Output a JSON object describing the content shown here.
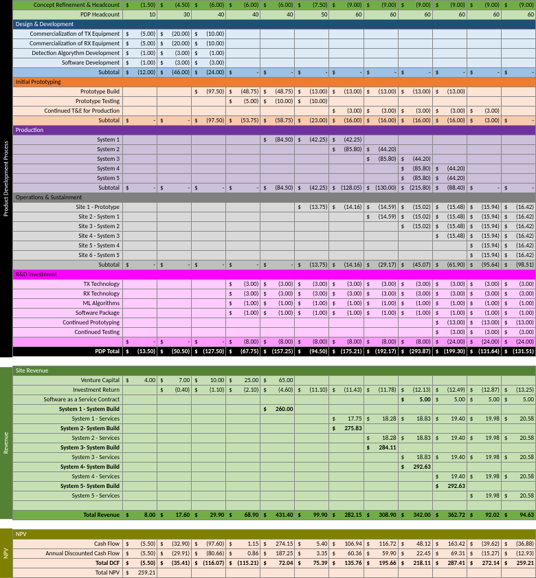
{
  "colors": {
    "green": "#70ad47",
    "green_light": "#c6e0b4",
    "green_dark": "#548235",
    "blue": "#1f4e78",
    "blue_mid": "#9bc2e6",
    "blue_light": "#ddebf7",
    "orange": "#ed7d31",
    "orange_light": "#fce4d6",
    "orange_mid": "#f8cbad",
    "purple": "#7030a0",
    "purple_light": "#ccc0da",
    "grey": "#808080",
    "grey_light": "#d9d9d9",
    "grey_mid": "#bfbfbf",
    "magenta": "#ff00ff",
    "pink_light": "#ffccff",
    "pink_mid": "#ff99ff",
    "black": "#000000",
    "white": "#ffffff",
    "olive": "#808000"
  },
  "side": {
    "pdp": "Product Development Process",
    "rev": "Revenue",
    "npv": "NPV"
  },
  "periods": 12,
  "rows": [
    {
      "label": "Concept Refinement & Headcount",
      "bg": "green",
      "v": [
        "(1.50)",
        "(4.50)",
        "(6.00)",
        "(6.00)",
        "(6.00)",
        "(7.50)",
        "(9.00)",
        "(9.00)",
        "(9.00)",
        "(9.00)",
        "(9.00)",
        "(9.00)"
      ],
      "d": 1
    },
    {
      "label": "PDP Headcount",
      "bg": "green_light",
      "v": [
        "10",
        "30",
        "40",
        "40",
        "40",
        "50",
        "60",
        "60",
        "60",
        "60",
        "60",
        "60"
      ]
    },
    {
      "label": "Design & Development",
      "bg": "blue",
      "section": 1,
      "fg": "white"
    },
    {
      "label": "Commercialization of TX Equipment",
      "bg": "blue_light",
      "v": [
        "(5.00)",
        "(20.00)",
        "(10.00)",
        "",
        "",
        "",
        "",
        "",
        "",
        "",
        "",
        ""
      ],
      "d": 1
    },
    {
      "label": "Commercialization of RX Equipment",
      "bg": "blue_light",
      "v": [
        "(5.00)",
        "(20.00)",
        "(10.00)",
        "",
        "",
        "",
        "",
        "",
        "",
        "",
        "",
        ""
      ],
      "d": 1
    },
    {
      "label": "Detection Algorythm Development",
      "bg": "blue_light",
      "v": [
        "(1.00)",
        "(3.00)",
        "(1.00)",
        "",
        "",
        "",
        "",
        "",
        "",
        "",
        "",
        ""
      ],
      "d": 1
    },
    {
      "label": "Software Development",
      "bg": "blue_light",
      "v": [
        "(1.00)",
        "(3.00)",
        "(3.00)",
        "",
        "",
        "",
        "",
        "",
        "",
        "",
        "",
        ""
      ],
      "d": 1
    },
    {
      "label": "Subtotal",
      "bg": "blue_mid",
      "v": [
        "(12.00)",
        "(46.00)",
        "(24.00)",
        "-",
        "-",
        "-",
        "-",
        "-",
        "-",
        "-",
        "-",
        "-"
      ],
      "d": 1
    },
    {
      "label": "Initial Prototyping",
      "bg": "orange",
      "section": 1
    },
    {
      "label": "Prototype Build",
      "bg": "orange_light",
      "v": [
        "",
        "",
        "(97.50)",
        "(48.75)",
        "(48.75)",
        "(13.00)",
        "(13.00)",
        "(13.00)",
        "(13.00)",
        "(13.00)",
        "",
        ""
      ],
      "d": 1
    },
    {
      "label": "Prototype Testing",
      "bg": "orange_light",
      "v": [
        "",
        "",
        "",
        "(5.00)",
        "(10.00)",
        "(10.00)",
        "",
        "",
        "",
        "",
        "",
        ""
      ],
      "d": 1
    },
    {
      "label": "Continued T&E for Production",
      "bg": "orange_light",
      "v": [
        "",
        "",
        "",
        "",
        "",
        "",
        "(3.00)",
        "(3.00)",
        "(3.00)",
        "(3.00)",
        "(3.00)",
        ""
      ],
      "d": 1
    },
    {
      "label": "Subtotal",
      "bg": "orange_mid",
      "v": [
        "-",
        "-",
        "(97.50)",
        "(53.75)",
        "(58.75)",
        "(23.00)",
        "(16.00)",
        "(16.00)",
        "(16.00)",
        "(16.00)",
        "(3.00)",
        "-"
      ],
      "d": 1
    },
    {
      "label": "Production",
      "bg": "purple",
      "section": 1,
      "fg": "white"
    },
    {
      "label": "System 1",
      "bg": "purple_light",
      "v": [
        "",
        "",
        "",
        "",
        "(84.50)",
        "(42.25)",
        "(42.25)",
        "",
        "",
        "",
        "",
        ""
      ],
      "d": 1
    },
    {
      "label": "System 2",
      "bg": "purple_light",
      "v": [
        "",
        "",
        "",
        "",
        "",
        "",
        "(85.80)",
        "(44.20)",
        "",
        "",
        "",
        ""
      ],
      "d": 1
    },
    {
      "label": "System 3",
      "bg": "purple_light",
      "v": [
        "",
        "",
        "",
        "",
        "",
        "",
        "",
        "(85.80)",
        "(44.20)",
        "",
        "",
        ""
      ],
      "d": 1
    },
    {
      "label": "System 4",
      "bg": "purple_light",
      "v": [
        "",
        "",
        "",
        "",
        "",
        "",
        "",
        "",
        "(85.80)",
        "(44.20)",
        "",
        ""
      ],
      "d": 1
    },
    {
      "label": "System 5",
      "bg": "purple_light",
      "v": [
        "",
        "",
        "",
        "",
        "",
        "",
        "",
        "",
        "(85.80)",
        "(44.20)",
        "",
        ""
      ],
      "d": 1
    },
    {
      "label": "Subtotal",
      "bg": "purple_light",
      "v": [
        "-",
        "-",
        "-",
        "-",
        "(84.50)",
        "(42.25)",
        "(128.05)",
        "(130.00)",
        "(215.80)",
        "(88.40)",
        "-",
        "-"
      ],
      "d": 1
    },
    {
      "label": "Operations & Sustainment",
      "bg": "grey",
      "section": 1
    },
    {
      "label": "Site 1 - Prototype",
      "bg": "grey_light",
      "v": [
        "",
        "",
        "",
        "",
        "",
        "(13.75)",
        "(14.16)",
        "(14.59)",
        "(15.02)",
        "(15.48)",
        "(15.94)",
        "(16.42)"
      ],
      "d": 1
    },
    {
      "label": "Site 2 - System 1",
      "bg": "grey_light",
      "v": [
        "",
        "",
        "",
        "",
        "",
        "",
        "",
        "(14.59)",
        "(15.02)",
        "(15.48)",
        "(15.94)",
        "(16.42)"
      ],
      "d": 1
    },
    {
      "label": "Site 3 - System 2",
      "bg": "grey_light",
      "v": [
        "",
        "",
        "",
        "",
        "",
        "",
        "",
        "",
        "(15.02)",
        "(15.48)",
        "(15.94)",
        "(16.42)"
      ],
      "d": 1
    },
    {
      "label": "Site 4 - System 3",
      "bg": "grey_light",
      "v": [
        "",
        "",
        "",
        "",
        "",
        "",
        "",
        "",
        "",
        "(15.48)",
        "(15.94)",
        "(16.42)"
      ],
      "d": 1
    },
    {
      "label": "Site 5 - System 4",
      "bg": "grey_light",
      "v": [
        "",
        "",
        "",
        "",
        "",
        "",
        "",
        "",
        "",
        "",
        "(15.94)",
        "(16.42)"
      ],
      "d": 1
    },
    {
      "label": "Site 6 - System 5",
      "bg": "grey_light",
      "v": [
        "",
        "",
        "",
        "",
        "",
        "",
        "",
        "",
        "",
        "",
        "(15.94)",
        "(16.42)"
      ],
      "d": 1
    },
    {
      "label": "Subtotal",
      "bg": "grey_mid",
      "v": [
        "-",
        "-",
        "-",
        "-",
        "-",
        "(13.75)",
        "(14.16)",
        "(29.17)",
        "(45.07)",
        "(61.90)",
        "(95.64)",
        "(98.51)"
      ],
      "d": 1
    },
    {
      "label": "R&D Investment",
      "bg": "magenta",
      "section": 1
    },
    {
      "label": "TX Technology",
      "bg": "pink_light",
      "v": [
        "",
        "",
        "",
        "(3.00)",
        "(3.00)",
        "(3.00)",
        "(3.00)",
        "(3.00)",
        "(3.00)",
        "(3.00)",
        "(3.00)",
        "(3.00)"
      ],
      "d": 1
    },
    {
      "label": "RX Technology",
      "bg": "pink_light",
      "v": [
        "",
        "",
        "",
        "(3.00)",
        "(3.00)",
        "(3.00)",
        "(3.00)",
        "(3.00)",
        "(3.00)",
        "(3.00)",
        "(3.00)",
        "(3.00)"
      ],
      "d": 1
    },
    {
      "label": "ML Algorithms",
      "bg": "pink_light",
      "v": [
        "",
        "",
        "",
        "(1.00)",
        "(1.00)",
        "(1.00)",
        "(1.00)",
        "(1.00)",
        "(1.00)",
        "(1.00)",
        "(1.00)",
        "(1.00)"
      ],
      "d": 1
    },
    {
      "label": "Software Package",
      "bg": "pink_light",
      "v": [
        "",
        "",
        "",
        "(1.00)",
        "(1.00)",
        "(1.00)",
        "(1.00)",
        "(1.00)",
        "(1.00)",
        "(1.00)",
        "(1.00)",
        "(1.00)"
      ],
      "d": 1
    },
    {
      "label": "Continued Prototyping",
      "bg": "pink_light",
      "v": [
        "",
        "",
        "",
        "",
        "",
        "",
        "",
        "",
        "",
        "(13.00)",
        "(13.00)",
        "(13.00)"
      ],
      "d": 1
    },
    {
      "label": "Continued Testing",
      "bg": "pink_light",
      "v": [
        "",
        "",
        "",
        "",
        "",
        "",
        "",
        "",
        "",
        "(3.00)",
        "(3.00)",
        "(3.00)"
      ],
      "d": 1
    },
    {
      "label": "",
      "bg": "pink_mid",
      "v": [
        "-",
        "-",
        "-",
        "(8.00)",
        "(8.00)",
        "(8.00)",
        "(8.00)",
        "(8.00)",
        "(8.00)",
        "(24.00)",
        "(24.00)",
        "(24.00)"
      ],
      "d": 1
    },
    {
      "label": "PDP Total",
      "bg": "black",
      "fg": "white",
      "bold": 1,
      "v": [
        "(13.50)",
        "(50.50)",
        "(127.50)",
        "(67.75)",
        "(157.25)",
        "(94.50)",
        "(175.21)",
        "(192.17)",
        "(293.87)",
        "(199.30)",
        "(131.64)",
        "(131.51)"
      ],
      "d": 1
    },
    {
      "spacer": 1
    },
    {
      "label": "Site Revenue",
      "bg": "green_dark",
      "section": 1,
      "fg": "white"
    },
    {
      "label": "Venture Capital",
      "bg": "green_light",
      "v": [
        "4.00",
        "7.00",
        "10.00",
        "25.00",
        "65.00",
        "",
        "",
        "",
        "",
        "",
        "",
        ""
      ],
      "d": 1
    },
    {
      "label": "Investment Return",
      "bg": "green_light",
      "v": [
        "",
        "(0.40)",
        "(1.10)",
        "(2.10)",
        "(4.60)",
        "(11.10)",
        "(11.43)",
        "(11.78)",
        "(12.13)",
        "(12.49)",
        "(12.87)",
        "(13.25)"
      ],
      "d": 1
    },
    {
      "label": "Software as a Service Contract",
      "bg": "green_light",
      "v": [
        "",
        "",
        "",
        "",
        "",
        "",
        "",
        "",
        "5.00",
        "5.00",
        "5.00",
        "5.00"
      ],
      "d": 1,
      "boldcell": [
        8
      ]
    },
    {
      "label": "System 1 - System Build",
      "bg": "green_light",
      "v": [
        "",
        "",
        "",
        "",
        "260.00",
        "",
        "",
        "",
        "",
        "",
        "",
        ""
      ],
      "d": 1,
      "bold": 1
    },
    {
      "label": "System 1 - Services",
      "bg": "green_light",
      "v": [
        "",
        "",
        "",
        "",
        "",
        "",
        "17.75",
        "18.28",
        "18.83",
        "19.40",
        "19.98",
        "20.58"
      ],
      "d": 1
    },
    {
      "label": "System 2- System Build",
      "bg": "green_light",
      "v": [
        "",
        "",
        "",
        "",
        "",
        "",
        "275.83",
        "",
        "",
        "",
        "",
        ""
      ],
      "d": 1,
      "bold": 1
    },
    {
      "label": "System 2 - Services",
      "bg": "green_light",
      "v": [
        "",
        "",
        "",
        "",
        "",
        "",
        "",
        "18.28",
        "18.83",
        "19.40",
        "19.98",
        "20.58"
      ],
      "d": 1
    },
    {
      "label": "System 3- System Build",
      "bg": "green_light",
      "v": [
        "",
        "",
        "",
        "",
        "",
        "",
        "",
        "284.11",
        "",
        "",
        "",
        ""
      ],
      "d": 1,
      "bold": 1
    },
    {
      "label": "System 3 - Services",
      "bg": "green_light",
      "v": [
        "",
        "",
        "",
        "",
        "",
        "",
        "",
        "",
        "18.83",
        "19.40",
        "19.98",
        "20.58"
      ],
      "d": 1
    },
    {
      "label": "System 4- System Build",
      "bg": "green_light",
      "v": [
        "",
        "",
        "",
        "",
        "",
        "",
        "",
        "",
        "292.63",
        "",
        "",
        ""
      ],
      "d": 1,
      "bold": 1
    },
    {
      "label": "System 4 - Services",
      "bg": "green_light",
      "v": [
        "",
        "",
        "",
        "",
        "",
        "",
        "",
        "",
        "",
        "19.40",
        "19.98",
        "20.58"
      ],
      "d": 1
    },
    {
      "label": "System 5- System Build",
      "bg": "green_light",
      "v": [
        "",
        "",
        "",
        "",
        "",
        "",
        "",
        "",
        "",
        "292.63",
        "",
        ""
      ],
      "d": 1,
      "bold": 1
    },
    {
      "label": "System 5 - Services",
      "bg": "green_light",
      "v": [
        "",
        "",
        "",
        "",
        "",
        "",
        "",
        "",
        "",
        "",
        "19.98",
        "20.58"
      ],
      "d": 1
    },
    {
      "label": "",
      "bg": "green_light",
      "v": [
        "",
        "",
        "",
        "",
        "",
        "",
        "",
        "",
        "",
        "",
        "",
        ""
      ]
    },
    {
      "label": "Total Revenue",
      "bg": "green",
      "bold": 1,
      "v": [
        "8.00",
        "17.60",
        "29.90",
        "68.90",
        "431.40",
        "99.90",
        "282.15",
        "308.90",
        "342.00",
        "362.72",
        "92.02",
        "94.63"
      ],
      "d": 1
    },
    {
      "spacer": 1
    },
    {
      "label": "NPV",
      "bg": "olive",
      "section": 1,
      "fg": "white"
    },
    {
      "label": "Cash Flow",
      "bg": "orange_light",
      "v": [
        "(5.50)",
        "(32.90)",
        "(97.60)",
        "1.15",
        "274.15",
        "5.40",
        "106.94",
        "116.72",
        "48.12",
        "163.42",
        "(39.62)",
        "(36.88)"
      ],
      "d": 1
    },
    {
      "label": "Annual Discounted Cash Flow",
      "bg": "orange_light",
      "v": [
        "(5.50)",
        "(29.91)",
        "(80.66)",
        "0.86",
        "187.25",
        "3.35",
        "60.36",
        "59.90",
        "22.45",
        "69.31",
        "(15.27)",
        "(12.93)"
      ],
      "d": 1
    },
    {
      "label": "Total DCF",
      "bg": "orange_light",
      "bold": 1,
      "v": [
        "(5.50)",
        "(35.41)",
        "(116.07)",
        "(115.21)",
        "72.04",
        "75.39",
        "135.76",
        "195.66",
        "218.11",
        "287.41",
        "272.14",
        "259.21"
      ],
      "d": 1
    },
    {
      "label": "Total NPV",
      "bg": "orange_light",
      "v": [
        "259.21",
        "",
        "",
        "",
        "",
        "",
        "",
        "",
        "",
        "",
        "",
        ""
      ],
      "d": 1
    }
  ]
}
